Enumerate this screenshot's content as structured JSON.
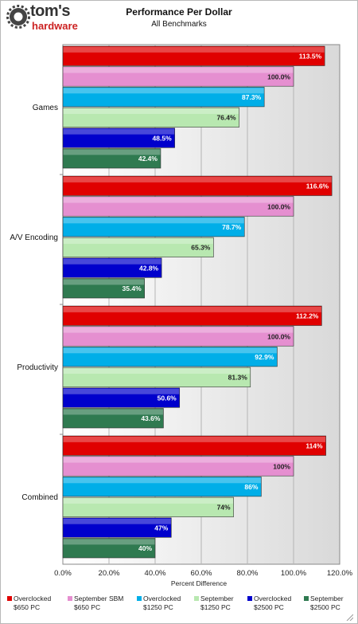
{
  "header": {
    "logo_main": "tom's",
    "logo_sub": "hardware",
    "title": "Performance Per Dollar",
    "subtitle": "All Benchmarks"
  },
  "colors": {
    "oc650": "#e00000",
    "sep650": "#e58fd0",
    "oc1250": "#00aee8",
    "sep1250": "#b8e8b0",
    "oc2500": "#0000cc",
    "sep2500": "#2f7a50"
  },
  "chart_data": {
    "type": "bar",
    "orientation": "horizontal",
    "categories": [
      "Games",
      "A/V Encoding",
      "Productivity",
      "Combined"
    ],
    "series": [
      {
        "name": "Overclocked $650 PC",
        "color_key": "oc650",
        "values": [
          113.5,
          116.6,
          112.2,
          114
        ],
        "labels": [
          "113.5%",
          "116.6%",
          "112.2%",
          "114%"
        ]
      },
      {
        "name": "September SBM $650 PC",
        "color_key": "sep650",
        "values": [
          100.0,
          100.0,
          100.0,
          100
        ],
        "labels": [
          "100.0%",
          "100.0%",
          "100.0%",
          "100%"
        ]
      },
      {
        "name": "Overclocked $1250 PC",
        "color_key": "oc1250",
        "values": [
          87.3,
          78.7,
          92.9,
          86
        ],
        "labels": [
          "87.3%",
          "78.7%",
          "92.9%",
          "86%"
        ]
      },
      {
        "name": "September $1250 PC",
        "color_key": "sep1250",
        "values": [
          76.4,
          65.3,
          81.3,
          74
        ],
        "labels": [
          "76.4%",
          "65.3%",
          "81.3%",
          "74%"
        ]
      },
      {
        "name": "Overclocked $2500 PC",
        "color_key": "oc2500",
        "values": [
          48.5,
          42.8,
          50.6,
          47
        ],
        "labels": [
          "48.5%",
          "42.8%",
          "50.6%",
          "47%"
        ]
      },
      {
        "name": "September $2500 PC",
        "color_key": "sep2500",
        "values": [
          42.4,
          35.4,
          43.6,
          40
        ],
        "labels": [
          "42.4%",
          "35.4%",
          "43.6%",
          "40%"
        ]
      }
    ],
    "xlabel": "Percent Difference",
    "xlim": [
      0,
      120
    ],
    "xticks": [
      "0.0%",
      "20.0%",
      "40.0%",
      "60.0%",
      "80.0%",
      "100.0%",
      "120.0%"
    ],
    "grid": true,
    "legend_placement": "bottom"
  },
  "legend": [
    {
      "line1": "Overclocked",
      "line2": "$650 PC",
      "color_key": "oc650"
    },
    {
      "line1": "September SBM",
      "line2": "$650 PC",
      "color_key": "sep650"
    },
    {
      "line1": "Overclocked",
      "line2": "$1250 PC",
      "color_key": "oc1250"
    },
    {
      "line1": "September",
      "line2": "$1250 PC",
      "color_key": "sep1250"
    },
    {
      "line1": "Overclocked",
      "line2": "$2500 PC",
      "color_key": "oc2500"
    },
    {
      "line1": "September",
      "line2": "$2500 PC",
      "color_key": "sep2500"
    }
  ]
}
